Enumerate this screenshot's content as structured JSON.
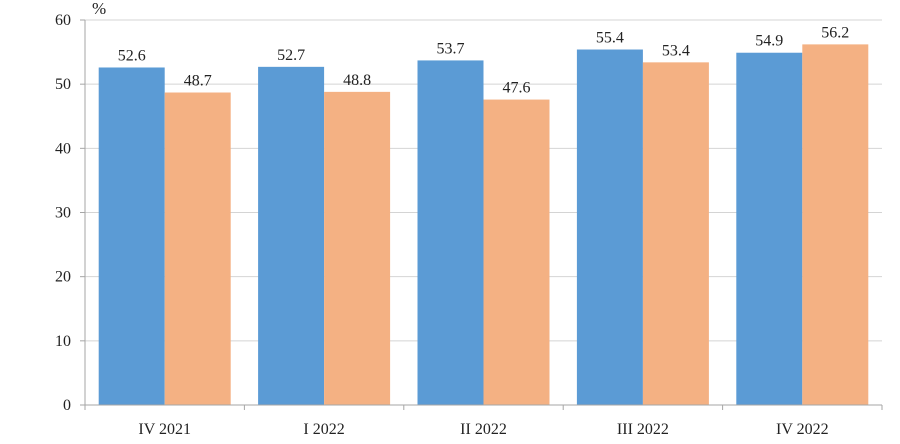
{
  "chart_data": {
    "type": "bar",
    "unit_label": "%",
    "categories": [
      "IV 2021",
      "I 2022",
      "II 2022",
      "III 2022",
      "IV 2022"
    ],
    "series": [
      {
        "color": "#5b9bd5",
        "values": [
          52.6,
          52.7,
          53.7,
          55.4,
          54.9
        ],
        "labels": [
          "52.6",
          "52.7",
          "53.7",
          "55.4",
          "54.9"
        ]
      },
      {
        "color": "#f4b183",
        "values": [
          48.7,
          48.8,
          47.6,
          53.4,
          56.2
        ],
        "labels": [
          "48.7",
          "48.8",
          "47.6",
          "53.4",
          "56.2"
        ]
      }
    ],
    "ylim": [
      0,
      60
    ],
    "yticks": [
      "0",
      "10",
      "20",
      "30",
      "40",
      "50",
      "60"
    ],
    "grid": true,
    "legend": "none"
  }
}
